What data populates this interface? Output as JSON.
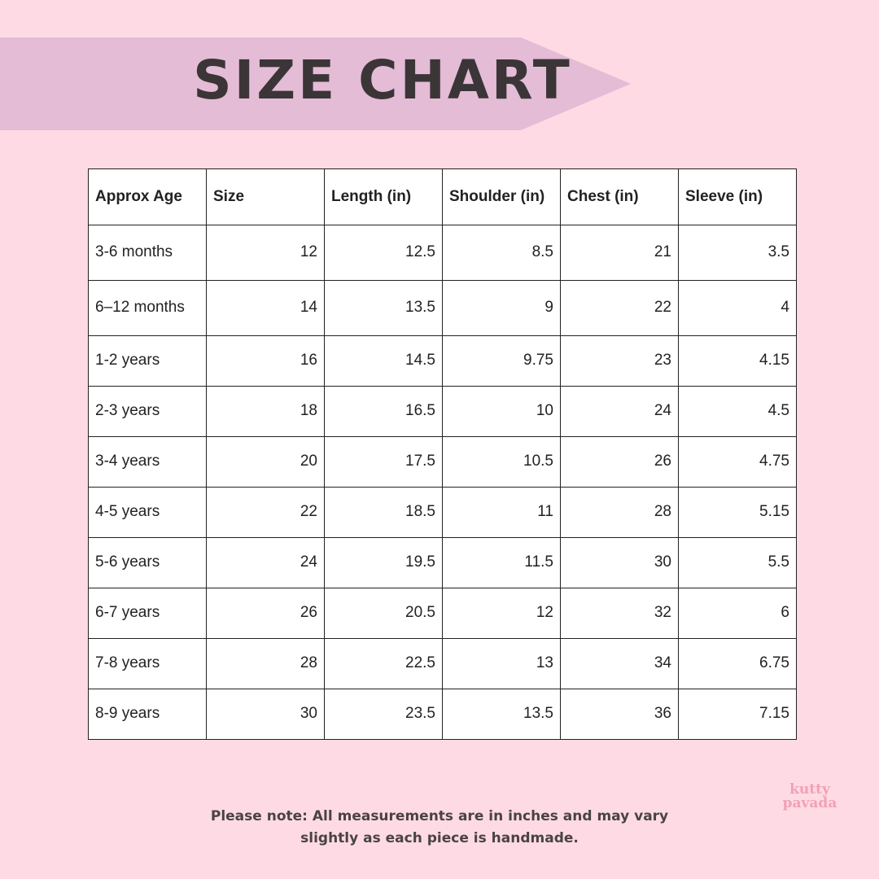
{
  "header": {
    "title": "SIZE CHART"
  },
  "table": {
    "headers": [
      "Approx Age",
      "Size",
      "Length (in)",
      "Shoulder (in)",
      "Chest (in)",
      "Sleeve (in)"
    ],
    "rows": [
      [
        "3-6 months",
        12,
        12.5,
        8.5,
        21,
        3.5
      ],
      [
        "6–12 months",
        14,
        13.5,
        9,
        22,
        4
      ],
      [
        "1-2 years",
        16,
        14.5,
        9.75,
        23,
        4.15
      ],
      [
        "2-3 years",
        18,
        16.5,
        10,
        24,
        4.5
      ],
      [
        "3-4 years",
        20,
        17.5,
        10.5,
        26,
        4.75
      ],
      [
        "4-5 years",
        22,
        18.5,
        11,
        28,
        5.15
      ],
      [
        "5-6 years",
        24,
        19.5,
        11.5,
        30,
        5.5
      ],
      [
        "6-7 years",
        26,
        20.5,
        12,
        32,
        6
      ],
      [
        "7-8 years",
        28,
        22.5,
        13,
        34,
        6.75
      ],
      [
        "8-9 years",
        30,
        23.5,
        13.5,
        36,
        7.15
      ]
    ]
  },
  "note": {
    "lines": [
      "Please note: All measurements are in inches and may vary",
      "slightly as each piece is handmade."
    ]
  },
  "logo": {
    "lines": [
      "kutty",
      "pavada"
    ]
  }
}
